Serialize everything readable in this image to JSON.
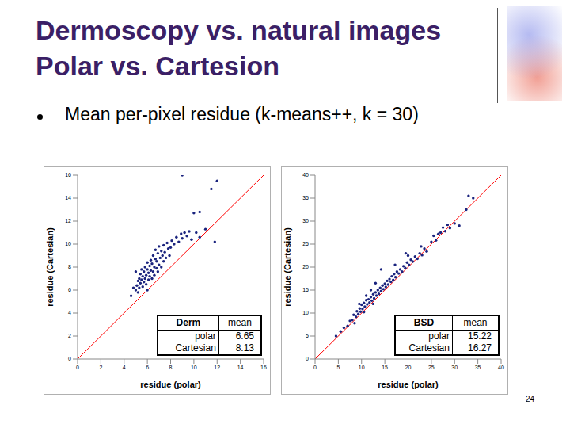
{
  "title": [
    "Dermoscopy vs. natural images",
    "Polar vs. Cartesion"
  ],
  "bullet": "Mean per-pixel residue (k-means++, k = 30)",
  "page": 24,
  "chart_data": [
    {
      "type": "scatter",
      "x_label": "residue (polar)",
      "y_label": "residue (Cartesian)",
      "xlim": [
        0,
        16
      ],
      "ylim": [
        0,
        16
      ],
      "xticks": [
        0,
        2,
        4,
        6,
        8,
        10,
        12,
        14,
        16
      ],
      "yticks": [
        0,
        2,
        4,
        6,
        8,
        10,
        12,
        14,
        16
      ],
      "color": "#1a237e",
      "x": [
        4.6,
        5.0,
        5.1,
        5.2,
        5.3,
        5.3,
        5.4,
        5.4,
        5.5,
        5.5,
        5.6,
        5.6,
        5.7,
        5.7,
        5.8,
        5.8,
        5.9,
        5.9,
        6.0,
        6.0,
        6.1,
        6.1,
        6.2,
        6.2,
        6.3,
        6.3,
        6.4,
        6.4,
        6.5,
        6.5,
        6.6,
        6.6,
        6.7,
        6.7,
        6.8,
        6.8,
        6.9,
        6.9,
        7.0,
        7.0,
        7.1,
        7.2,
        7.2,
        7.3,
        7.4,
        7.4,
        7.5,
        7.6,
        7.7,
        7.8,
        7.9,
        8.0,
        8.1,
        8.3,
        8.5,
        8.7,
        8.9,
        9.0,
        9.2,
        9.4,
        9.6,
        9.8,
        10.0,
        10.2,
        10.5,
        11.0,
        11.8,
        9.0,
        11.5,
        12.0,
        10.5,
        5.2,
        4.8,
        6.0,
        5.0
      ],
      "y": [
        5.5,
        6.0,
        6.4,
        6.8,
        6.2,
        7.0,
        6.6,
        7.4,
        6.9,
        7.8,
        6.3,
        7.2,
        6.7,
        7.6,
        7.0,
        8.0,
        6.5,
        7.3,
        7.8,
        8.4,
        6.9,
        7.5,
        8.1,
        7.2,
        8.6,
        7.7,
        7.0,
        8.3,
        7.6,
        9.0,
        8.0,
        7.3,
        8.7,
        9.5,
        7.9,
        8.5,
        9.2,
        7.6,
        8.2,
        9.8,
        8.8,
        9.4,
        8.0,
        9.0,
        8.5,
        9.9,
        9.3,
        8.8,
        10.1,
        9.6,
        9.0,
        9.7,
        10.3,
        10.0,
        10.6,
        10.2,
        10.9,
        10.5,
        11.0,
        10.7,
        11.1,
        10.4,
        12.7,
        11.0,
        10.6,
        11.3,
        10.2,
        16.0,
        14.8,
        15.5,
        12.8,
        5.8,
        6.2,
        6.0,
        7.6
      ],
      "diagonal": {
        "x": [
          0,
          16
        ],
        "y": [
          0,
          16
        ],
        "color": "#ff0000"
      },
      "table": {
        "header": [
          "Derm",
          "mean"
        ],
        "rows": [
          [
            "polar",
            6.65
          ],
          [
            "Cartesian",
            8.13
          ]
        ]
      }
    },
    {
      "type": "scatter",
      "x_label": "residue (polar)",
      "y_label": "residue (Cartesian)",
      "xlim": [
        0,
        40
      ],
      "ylim": [
        0,
        40
      ],
      "xticks": [
        0,
        5,
        10,
        15,
        20,
        25,
        30,
        35,
        40
      ],
      "yticks": [
        0,
        5,
        10,
        15,
        20,
        25,
        30,
        35,
        40
      ],
      "color": "#1a237e",
      "x": [
        4.5,
        5.5,
        6.2,
        7.0,
        7.5,
        8.0,
        8.3,
        8.8,
        9.0,
        9.3,
        9.6,
        9.8,
        10.0,
        10.2,
        10.5,
        10.7,
        11.0,
        11.2,
        11.5,
        11.7,
        12.0,
        12.2,
        12.5,
        12.7,
        13.0,
        13.2,
        13.5,
        13.7,
        14.0,
        14.2,
        14.5,
        14.7,
        15.0,
        15.2,
        15.5,
        15.7,
        16.0,
        16.3,
        16.5,
        16.8,
        17.0,
        17.3,
        17.6,
        18.0,
        18.3,
        18.7,
        19.0,
        19.4,
        19.8,
        20.2,
        20.6,
        21.0,
        21.5,
        22.0,
        22.5,
        23.0,
        23.5,
        24.0,
        25.0,
        26.0,
        27.0,
        28.0,
        29.0,
        30.0,
        31.0,
        33.0,
        34.0,
        32.5,
        27.5,
        22.8,
        14.2,
        12.0,
        9.5,
        17.2,
        19.5,
        20.0,
        13.0,
        11.0,
        25.5,
        26.5,
        28.5,
        8.5,
        10.5,
        12.5
      ],
      "y": [
        5.0,
        6.0,
        6.8,
        7.2,
        8.3,
        8.5,
        9.6,
        9.2,
        10.4,
        9.8,
        11.0,
        10.3,
        11.8,
        10.9,
        12.2,
        11.4,
        12.8,
        11.9,
        13.0,
        12.3,
        13.5,
        12.7,
        14.1,
        13.2,
        14.5,
        13.8,
        15.0,
        14.2,
        15.5,
        14.8,
        16.0,
        15.2,
        16.4,
        15.7,
        17.0,
        16.2,
        17.4,
        16.8,
        18.0,
        17.2,
        18.5,
        17.8,
        19.0,
        18.6,
        19.5,
        19.0,
        20.2,
        19.8,
        21.0,
        20.5,
        21.6,
        21.2,
        22.3,
        21.8,
        23.0,
        22.6,
        24.0,
        23.4,
        25.5,
        25.8,
        27.5,
        27.8,
        28.5,
        29.5,
        29.0,
        35.5,
        35.0,
        32.5,
        28.6,
        24.5,
        19.5,
        15.0,
        12.0,
        20.5,
        23.0,
        22.5,
        16.5,
        13.8,
        26.8,
        27.2,
        29.2,
        7.8,
        10.2,
        12.0
      ],
      "diagonal": {
        "x": [
          0,
          40
        ],
        "y": [
          0,
          40
        ],
        "color": "#ff0000"
      },
      "table": {
        "header": [
          "BSD",
          "mean"
        ],
        "rows": [
          [
            "polar",
            15.22
          ],
          [
            "Cartesian",
            16.27
          ]
        ]
      }
    }
  ]
}
